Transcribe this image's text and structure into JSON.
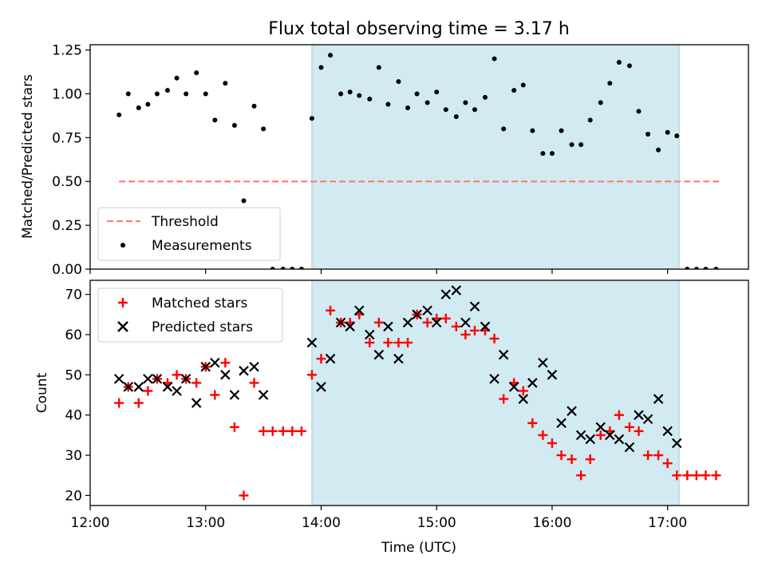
{
  "title": "Flux total observing time = 3.17 h",
  "colors": {
    "shade": "#add8e6",
    "threshold": "#ff7f7f",
    "matched": "#ff0000",
    "predicted": "#000000",
    "measurement": "#000000"
  },
  "chart_data": [
    {
      "type": "scatter",
      "ylabel": "Matched/Predicted stars",
      "ylim": [
        0,
        1.28
      ],
      "yticks": [
        0.0,
        0.25,
        0.5,
        0.75,
        1.0,
        1.25
      ],
      "ytick_labels": [
        "0.00",
        "0.25",
        "0.50",
        "0.75",
        "1.00",
        "1.25"
      ],
      "xlim_hours": [
        12.0,
        17.7
      ],
      "shaded_span_hours": [
        13.92,
        17.1
      ],
      "legend_position": "lower-left",
      "threshold": {
        "name": "Threshold",
        "y": 0.5,
        "x_hours": [
          12.25,
          17.45
        ]
      },
      "measurements": {
        "name": "Measurements",
        "x_hours": [
          12.25,
          12.33,
          12.42,
          12.5,
          12.58,
          12.67,
          12.75,
          12.83,
          12.92,
          13.0,
          13.08,
          13.17,
          13.25,
          13.33,
          13.42,
          13.5,
          13.58,
          13.67,
          13.75,
          13.83,
          13.92,
          14.0,
          14.08,
          14.17,
          14.25,
          14.33,
          14.42,
          14.5,
          14.58,
          14.67,
          14.75,
          14.83,
          14.92,
          15.0,
          15.08,
          15.17,
          15.25,
          15.33,
          15.42,
          15.5,
          15.58,
          15.67,
          15.75,
          15.83,
          15.92,
          16.0,
          16.08,
          16.17,
          16.25,
          16.33,
          16.42,
          16.5,
          16.58,
          16.67,
          16.75,
          16.83,
          16.92,
          17.0,
          17.08,
          17.17,
          17.25,
          17.33,
          17.42
        ],
        "y": [
          0.88,
          1.0,
          0.92,
          0.94,
          1.0,
          1.02,
          1.09,
          1.0,
          1.12,
          1.0,
          0.85,
          1.06,
          0.82,
          0.39,
          0.93,
          0.8,
          0.0,
          0.0,
          0.0,
          0.0,
          0.86,
          1.15,
          1.22,
          1.0,
          1.01,
          0.99,
          0.97,
          1.15,
          0.94,
          1.07,
          0.92,
          1.0,
          0.95,
          1.01,
          0.91,
          0.87,
          0.95,
          0.91,
          0.98,
          1.2,
          0.8,
          1.02,
          1.05,
          0.79,
          0.66,
          0.66,
          0.79,
          0.71,
          0.71,
          0.85,
          0.95,
          1.06,
          1.18,
          1.16,
          0.9,
          0.77,
          0.68,
          0.78,
          0.76,
          0.0,
          0.0,
          0.0,
          0.0
        ]
      }
    },
    {
      "type": "scatter",
      "ylabel": "Count",
      "xlabel": "Time (UTC)",
      "ylim": [
        17.5,
        73.5
      ],
      "yticks": [
        20,
        30,
        40,
        50,
        60,
        70
      ],
      "ytick_labels": [
        "20",
        "30",
        "40",
        "50",
        "60",
        "70"
      ],
      "xlim_hours": [
        12.0,
        17.7
      ],
      "xticks_hours": [
        12,
        13,
        14,
        15,
        16,
        17
      ],
      "xtick_labels": [
        "12:00",
        "13:00",
        "14:00",
        "15:00",
        "16:00",
        "17:00"
      ],
      "shaded_span_hours": [
        13.92,
        17.1
      ],
      "legend_position": "upper-left",
      "series": [
        {
          "name": "Matched stars",
          "x_hours": [
            12.25,
            12.33,
            12.42,
            12.5,
            12.58,
            12.67,
            12.75,
            12.83,
            12.92,
            13.0,
            13.08,
            13.17,
            13.25,
            13.33,
            13.42,
            13.5,
            13.58,
            13.67,
            13.75,
            13.83,
            13.92,
            14.0,
            14.08,
            14.17,
            14.25,
            14.33,
            14.42,
            14.5,
            14.58,
            14.67,
            14.75,
            14.83,
            14.92,
            15.0,
            15.08,
            15.17,
            15.25,
            15.33,
            15.42,
            15.5,
            15.58,
            15.67,
            15.75,
            15.83,
            15.92,
            16.0,
            16.08,
            16.17,
            16.25,
            16.33,
            16.42,
            16.5,
            16.58,
            16.67,
            16.75,
            16.83,
            16.92,
            17.0,
            17.08,
            17.17,
            17.25,
            17.33,
            17.42
          ],
          "y": [
            43,
            47,
            43,
            46,
            49,
            48,
            50,
            49,
            48,
            52,
            45,
            53,
            37,
            20,
            48,
            36,
            36,
            36,
            36,
            36,
            50,
            54,
            66,
            63,
            63,
            65,
            58,
            63,
            58,
            58,
            58,
            65,
            63,
            64,
            64,
            62,
            60,
            61,
            61,
            59,
            44,
            48,
            46,
            38,
            35,
            33,
            30,
            29,
            25,
            29,
            35,
            36,
            40,
            37,
            36,
            30,
            30,
            28,
            25,
            25,
            25,
            25,
            25
          ]
        },
        {
          "name": "Predicted stars",
          "x_hours": [
            12.25,
            12.33,
            12.42,
            12.5,
            12.58,
            12.67,
            12.75,
            12.83,
            12.92,
            13.0,
            13.08,
            13.17,
            13.25,
            13.33,
            13.42,
            13.5,
            13.92,
            14.0,
            14.08,
            14.17,
            14.25,
            14.33,
            14.42,
            14.5,
            14.58,
            14.67,
            14.75,
            14.83,
            14.92,
            15.0,
            15.08,
            15.17,
            15.25,
            15.33,
            15.42,
            15.5,
            15.58,
            15.67,
            15.75,
            15.83,
            15.92,
            16.0,
            16.08,
            16.17,
            16.25,
            16.33,
            16.42,
            16.5,
            16.58,
            16.67,
            16.75,
            16.83,
            16.92,
            17.0,
            17.08
          ],
          "y": [
            49,
            47,
            47,
            49,
            49,
            47,
            46,
            49,
            43,
            52,
            53,
            50,
            45,
            51,
            52,
            45,
            58,
            47,
            54,
            63,
            62,
            66,
            60,
            55,
            62,
            54,
            63,
            65,
            66,
            63,
            70,
            71,
            63,
            67,
            62,
            49,
            55,
            47,
            44,
            48,
            53,
            50,
            38,
            41,
            35,
            34,
            37,
            35,
            34,
            32,
            40,
            39,
            44,
            36,
            33
          ]
        }
      ]
    }
  ]
}
